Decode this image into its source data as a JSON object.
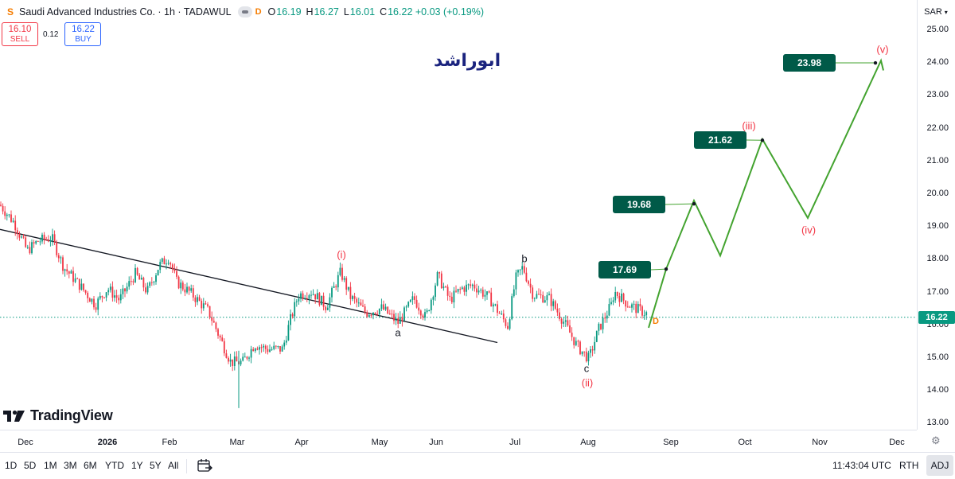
{
  "symbol": {
    "logo": "S",
    "title": "Saudi Advanced Industries Co. · 1h · TADAWUL",
    "delay_badge": "D",
    "ohlc": [
      {
        "label": "O",
        "value": "16.19"
      },
      {
        "label": "H",
        "value": "16.27"
      },
      {
        "label": "L",
        "value": "16.01"
      },
      {
        "label": "C",
        "value": "16.22 +0.03 (+0.19%)"
      }
    ]
  },
  "trade": {
    "sell_price": "16.10",
    "sell_label": "SELL",
    "spread": "0.12",
    "buy_price": "16.22",
    "buy_label": "BUY"
  },
  "author_label": "ابوراشد",
  "branding": "TradingView",
  "price_scale": {
    "currency": "SAR",
    "ticks": [
      "25.00",
      "24.00",
      "23.00",
      "22.00",
      "21.00",
      "20.00",
      "19.00",
      "18.00",
      "17.00",
      "16.00",
      "15.00",
      "14.00",
      "13.00"
    ],
    "last_price": "16.22"
  },
  "time_axis": {
    "ticks": [
      {
        "label": "Dec",
        "bold": false
      },
      {
        "label": "2026",
        "bold": true
      },
      {
        "label": "Feb",
        "bold": false
      },
      {
        "label": "Mar",
        "bold": false
      },
      {
        "label": "Apr",
        "bold": false
      },
      {
        "label": "May",
        "bold": false
      },
      {
        "label": "Jun",
        "bold": false
      },
      {
        "label": "Jul",
        "bold": false
      },
      {
        "label": "Aug",
        "bold": false
      },
      {
        "label": "Sep",
        "bold": false
      },
      {
        "label": "Oct",
        "bold": false
      },
      {
        "label": "Nov",
        "bold": false
      },
      {
        "label": "Dec",
        "bold": false
      }
    ]
  },
  "bottom_bar": {
    "ranges": [
      "1D",
      "5D",
      "1M",
      "3M",
      "6M",
      "YTD",
      "1Y",
      "5Y",
      "All"
    ],
    "clock": "11:43:04 UTC",
    "rth": "RTH",
    "adj": "ADJ"
  },
  "annotations": {
    "targets": [
      "17.69",
      "19.68",
      "21.62",
      "23.98"
    ],
    "waves": {
      "i": "(i)",
      "ii": "(ii)",
      "iii": "(iii)",
      "iv": "(iv)",
      "v": "(v)",
      "a": "a",
      "b": "b",
      "c": "c"
    },
    "d_marker": "D"
  },
  "colors": {
    "up": "#089981",
    "down": "#f23645",
    "projection": "#43a32f",
    "target_box": "#005a48",
    "wave_label": "#f23645",
    "author": "#1a237e"
  },
  "chart_data": {
    "type": "candlestick",
    "ylim": [
      13.0,
      25.0
    ],
    "last_price": 16.22,
    "trendline": {
      "from": [
        0,
        18.9
      ],
      "to": [
        625,
        15.45
      ]
    },
    "price_path": [
      [
        0,
        19.65
      ],
      [
        18,
        19.1
      ],
      [
        34,
        18.25
      ],
      [
        48,
        18.55
      ],
      [
        65,
        18.65
      ],
      [
        80,
        17.75
      ],
      [
        100,
        17.2
      ],
      [
        120,
        16.6
      ],
      [
        135,
        17.1
      ],
      [
        150,
        16.75
      ],
      [
        170,
        17.55
      ],
      [
        185,
        17.0
      ],
      [
        200,
        17.8
      ],
      [
        212,
        18.05
      ],
      [
        222,
        17.3
      ],
      [
        240,
        16.95
      ],
      [
        262,
        16.4
      ],
      [
        278,
        15.5
      ],
      [
        290,
        14.85
      ],
      [
        305,
        14.85
      ],
      [
        320,
        15.4
      ],
      [
        335,
        15.25
      ],
      [
        355,
        15.25
      ],
      [
        365,
        16.15
      ],
      [
        375,
        16.9
      ],
      [
        392,
        17.0
      ],
      [
        410,
        16.55
      ],
      [
        428,
        17.6
      ],
      [
        440,
        16.85
      ],
      [
        460,
        16.35
      ],
      [
        480,
        16.5
      ],
      [
        500,
        16.05
      ],
      [
        520,
        16.8
      ],
      [
        535,
        16.2
      ],
      [
        550,
        17.5
      ],
      [
        565,
        16.75
      ],
      [
        580,
        17.1
      ],
      [
        595,
        17.2
      ],
      [
        615,
        16.8
      ],
      [
        638,
        15.95
      ],
      [
        648,
        17.4
      ],
      [
        657,
        17.75
      ],
      [
        670,
        16.9
      ],
      [
        690,
        16.8
      ],
      [
        708,
        16.1
      ],
      [
        725,
        15.35
      ],
      [
        740,
        14.95
      ],
      [
        752,
        15.85
      ],
      [
        768,
        16.6
      ],
      [
        772,
        17.0
      ],
      [
        790,
        16.6
      ],
      [
        815,
        16.3
      ]
    ],
    "projection_path": [
      [
        815,
        15.9
      ],
      [
        837,
        17.69
      ],
      [
        872,
        19.78
      ],
      [
        905,
        18.1
      ],
      [
        958,
        21.65
      ],
      [
        1015,
        19.25
      ],
      [
        1107,
        24.05
      ],
      [
        1110,
        23.75
      ]
    ]
  }
}
